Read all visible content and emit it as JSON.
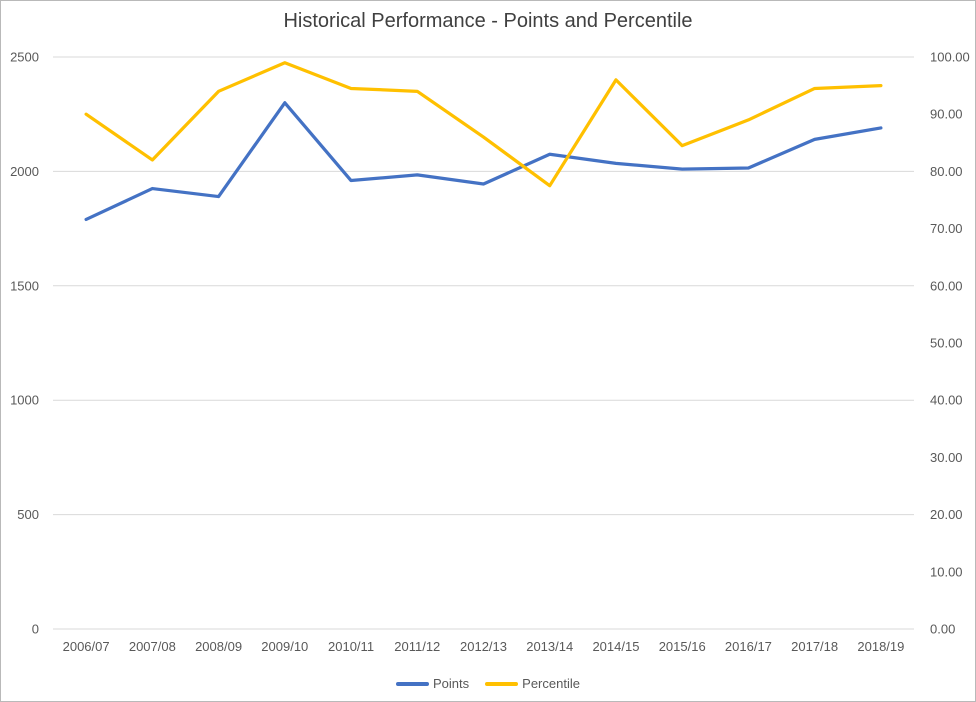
{
  "chart_data": {
    "type": "line",
    "title": "Historical Performance - Points and Percentile",
    "categories": [
      "2006/07",
      "2007/08",
      "2008/09",
      "2009/10",
      "2010/11",
      "2011/12",
      "2012/13",
      "2013/14",
      "2014/15",
      "2015/16",
      "2016/17",
      "2017/18",
      "2018/19"
    ],
    "series": [
      {
        "name": "Points",
        "axis": "left",
        "color": "#4472C4",
        "values": [
          1790,
          1925,
          1890,
          2300,
          1960,
          1985,
          1945,
          2075,
          2035,
          2010,
          2015,
          2140,
          2190
        ]
      },
      {
        "name": "Percentile",
        "axis": "right",
        "color": "#FFC000",
        "values": [
          90,
          82,
          94,
          99,
          94.5,
          94,
          86,
          77.5,
          96,
          84.5,
          89,
          94.5,
          95
        ]
      }
    ],
    "left_axis": {
      "range": [
        0,
        2500
      ],
      "tick_labels": [
        "0",
        "500",
        "1000",
        "1500",
        "2000",
        "2500"
      ]
    },
    "right_axis": {
      "range": [
        0,
        100
      ],
      "tick_labels": [
        "0.00",
        "10.00",
        "20.00",
        "30.00",
        "40.00",
        "50.00",
        "60.00",
        "70.00",
        "80.00",
        "90.00",
        "100.00"
      ]
    },
    "grid": true,
    "legend_position": "bottom",
    "gridline_color": "#d9d9d9"
  }
}
